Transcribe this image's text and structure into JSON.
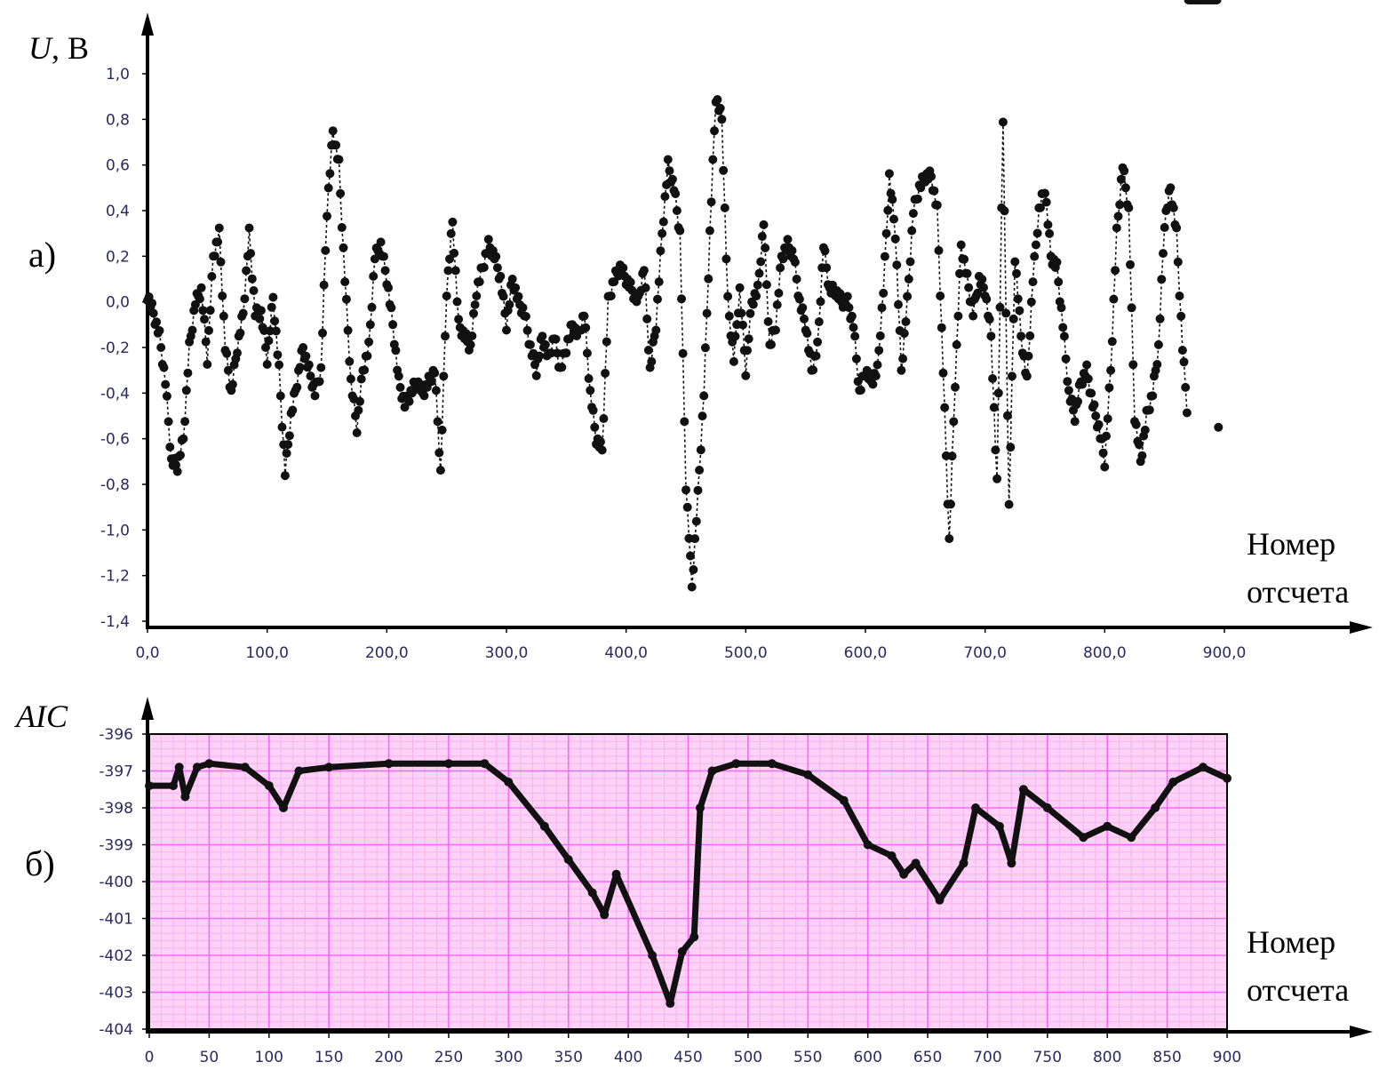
{
  "chart_data": [
    {
      "panel_label": "а)",
      "type": "line",
      "line_style": "dotted with filled markers",
      "ylabel_var": "U",
      "ylabel_unit": ", В",
      "xlabel_line1": "Номер",
      "xlabel_line2": "отсчета",
      "xlim": [
        0,
        900
      ],
      "ylim": [
        -1.4,
        1.0
      ],
      "grid": false,
      "xticks": [
        "0,0",
        "100,0",
        "200,0",
        "300,0",
        "400,0",
        "500,0",
        "600,0",
        "700,0",
        "800,0",
        "900,0"
      ],
      "yticks": [
        "1,0",
        "0,8",
        "0,6",
        "0,4",
        "0,2",
        "0,0",
        "-0,2",
        "-0,4",
        "-0,6",
        "-0,8",
        "-1,0",
        "-1,2",
        "-1,4"
      ],
      "keypoints_x": [
        0,
        5,
        10,
        15,
        20,
        25,
        30,
        35,
        40,
        45,
        50,
        55,
        60,
        65,
        70,
        75,
        80,
        85,
        90,
        95,
        100,
        105,
        110,
        115,
        120,
        125,
        130,
        135,
        140,
        145,
        150,
        155,
        160,
        165,
        170,
        175,
        180,
        185,
        190,
        195,
        200,
        205,
        210,
        215,
        220,
        225,
        230,
        235,
        240,
        245,
        250,
        255,
        260,
        265,
        270,
        275,
        280,
        285,
        290,
        295,
        300,
        305,
        310,
        315,
        320,
        325,
        330,
        335,
        340,
        345,
        350,
        355,
        360,
        365,
        370,
        375,
        380,
        385,
        390,
        395,
        400,
        405,
        410,
        415,
        420,
        425,
        430,
        435,
        440,
        445,
        450,
        455,
        460,
        465,
        470,
        475,
        480,
        485,
        490,
        495,
        500,
        505,
        510,
        515,
        520,
        525,
        530,
        535,
        540,
        545,
        550,
        555,
        560,
        565,
        570,
        575,
        580,
        585,
        590,
        595,
        600,
        605,
        610,
        615,
        620,
        625,
        630,
        635,
        640,
        645,
        650,
        655,
        660,
        665,
        670,
        675,
        680,
        685,
        690,
        695,
        700,
        705,
        710,
        715,
        720,
        725,
        730,
        735,
        740,
        745,
        750,
        755,
        760,
        765,
        770,
        775,
        780,
        785,
        790,
        795,
        800,
        805,
        810,
        815,
        820,
        825,
        830,
        835,
        840,
        845,
        850,
        855,
        860,
        865,
        870,
        875,
        880,
        885,
        890,
        895
      ],
      "keypoints_y": [
        0.03,
        -0.05,
        -0.15,
        -0.35,
        -0.7,
        -0.72,
        -0.6,
        -0.2,
        0.0,
        0.05,
        -0.25,
        0.2,
        0.3,
        -0.2,
        -0.4,
        -0.2,
        -0.05,
        0.3,
        -0.05,
        -0.05,
        -0.25,
        0.02,
        -0.3,
        -0.75,
        -0.5,
        -0.35,
        -0.2,
        -0.3,
        -0.4,
        -0.3,
        0.4,
        0.75,
        0.6,
        0.1,
        -0.35,
        -0.55,
        -0.3,
        -0.2,
        0.2,
        0.25,
        0.1,
        -0.1,
        -0.35,
        -0.45,
        -0.4,
        -0.35,
        -0.4,
        -0.35,
        -0.3,
        -0.75,
        0.05,
        0.35,
        -0.1,
        -0.15,
        -0.2,
        0.05,
        0.15,
        0.25,
        0.2,
        0.1,
        -0.1,
        0.1,
        0.0,
        -0.05,
        -0.2,
        -0.3,
        -0.15,
        -0.25,
        -0.15,
        -0.3,
        -0.2,
        -0.1,
        -0.15,
        -0.05,
        -0.4,
        -0.6,
        -0.65,
        0.0,
        0.1,
        0.15,
        0.1,
        0.05,
        0.0,
        0.15,
        -0.3,
        -0.1,
        0.3,
        0.6,
        0.5,
        0.3,
        -0.8,
        -1.25,
        -0.85,
        -0.4,
        0.3,
        0.9,
        0.8,
        0.0,
        -0.25,
        0.05,
        -0.3,
        0.0,
        0.05,
        0.35,
        -0.2,
        -0.1,
        0.2,
        0.25,
        0.2,
        0.0,
        -0.1,
        -0.3,
        -0.2,
        0.25,
        0.05,
        0.05,
        0.0,
        0.0,
        -0.1,
        -0.4,
        -0.3,
        -0.35,
        -0.3,
        0.05,
        0.55,
        0.3,
        -0.3,
        0.0,
        0.4,
        0.5,
        0.55,
        0.55,
        0.4,
        -0.3,
        -1.05,
        -0.35,
        0.25,
        0.1,
        -0.05,
        0.1,
        0.05,
        -0.15,
        -0.8,
        0.8,
        -0.9,
        0.2,
        -0.15,
        -0.35,
        0.1,
        0.4,
        0.5,
        0.2,
        0.15,
        -0.1,
        -0.4,
        -0.5,
        -0.35,
        -0.3,
        -0.45,
        -0.55,
        -0.7,
        -0.3,
        0.3,
        0.6,
        0.4,
        -0.5,
        -0.7,
        -0.5,
        -0.4,
        -0.2,
        0.35,
        0.5,
        0.3,
        -0.2,
        -0.55
      ]
    },
    {
      "panel_label": "б)",
      "type": "line",
      "line_style": "thick line with filled markers",
      "ylabel": "AIC",
      "xlabel_line1": "Номер",
      "xlabel_line2": "отсчета",
      "xlim": [
        0,
        900
      ],
      "ylim": [
        -404,
        -396
      ],
      "grid": true,
      "grid_color": "#ff66ff",
      "grid_minor_color": "#f6b3f0",
      "background": "#fdd2f6",
      "xticks": [
        "0",
        "50",
        "100",
        "150",
        "200",
        "250",
        "300",
        "350",
        "400",
        "450",
        "500",
        "550",
        "600",
        "650",
        "700",
        "750",
        "800",
        "850",
        "900"
      ],
      "yticks": [
        "-396",
        "-397",
        "-398",
        "-399",
        "-400",
        "-401",
        "-402",
        "-403",
        "-404"
      ],
      "x": [
        0,
        20,
        25,
        30,
        40,
        50,
        80,
        100,
        112,
        125,
        150,
        200,
        250,
        280,
        300,
        330,
        350,
        370,
        380,
        390,
        420,
        435,
        445,
        455,
        460,
        470,
        490,
        520,
        550,
        580,
        600,
        620,
        630,
        640,
        660,
        680,
        690,
        710,
        720,
        730,
        750,
        780,
        800,
        820,
        840,
        855,
        880,
        900
      ],
      "y": [
        -397.4,
        -397.4,
        -396.9,
        -397.7,
        -396.9,
        -396.8,
        -396.9,
        -397.4,
        -398.0,
        -397.0,
        -396.9,
        -396.8,
        -396.8,
        -396.8,
        -397.3,
        -398.5,
        -399.4,
        -400.3,
        -400.9,
        -399.8,
        -402.0,
        -403.3,
        -401.9,
        -401.5,
        -398.0,
        -397.0,
        -396.8,
        -396.8,
        -397.1,
        -397.8,
        -399.0,
        -399.3,
        -399.8,
        -399.5,
        -400.5,
        -399.5,
        -398.0,
        -398.5,
        -399.5,
        -397.5,
        -398.0,
        -398.8,
        -398.5,
        -398.8,
        -398.0,
        -397.3,
        -396.9,
        -397.2
      ]
    }
  ]
}
